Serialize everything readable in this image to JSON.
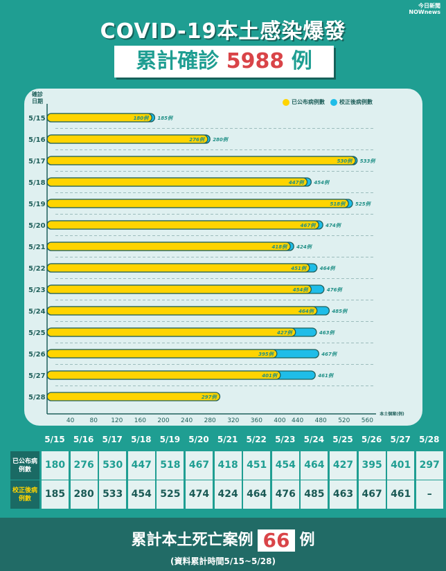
{
  "logo": {
    "line1": "今日新聞",
    "line2": "NOWnews"
  },
  "header": {
    "title": "COVID-19本土感染爆發",
    "subtitle_prefix": "累計確診",
    "subtitle_number": "5988",
    "subtitle_suffix": "例"
  },
  "colors": {
    "published": "#ffd400",
    "corrected": "#1fbde8",
    "outline": "#1f5f5a",
    "accent": "#d94448"
  },
  "chart_data": {
    "type": "bar",
    "orientation": "horizontal",
    "ylabel": "確診日期",
    "xlabel": "本土個案(例)",
    "xlim": [
      0,
      580
    ],
    "xticks": [
      40,
      80,
      120,
      160,
      200,
      240,
      280,
      320,
      360,
      400,
      440,
      480,
      520,
      560
    ],
    "legend_position": "top-right",
    "categories": [
      "5/15",
      "5/16",
      "5/17",
      "5/18",
      "5/19",
      "5/20",
      "5/21",
      "5/22",
      "5/23",
      "5/24",
      "5/25",
      "5/26",
      "5/27",
      "5/28"
    ],
    "series": [
      {
        "name": "已公布病例數",
        "values": [
          180,
          276,
          530,
          447,
          518,
          467,
          418,
          451,
          454,
          464,
          427,
          395,
          401,
          297
        ]
      },
      {
        "name": "校正後病例數",
        "values": [
          185,
          280,
          533,
          454,
          525,
          474,
          424,
          464,
          476,
          485,
          463,
          467,
          461,
          null
        ]
      }
    ],
    "unit_suffix": "例"
  },
  "table": {
    "row_labels": [
      "已公布病例數",
      "校正後病例數"
    ],
    "dates": [
      "5/15",
      "5/16",
      "5/17",
      "5/18",
      "5/19",
      "5/20",
      "5/21",
      "5/22",
      "5/23",
      "5/24",
      "5/25",
      "5/26",
      "5/27",
      "5/28"
    ],
    "published": [
      "180",
      "276",
      "530",
      "447",
      "518",
      "467",
      "418",
      "451",
      "454",
      "464",
      "427",
      "395",
      "401",
      "297"
    ],
    "corrected": [
      "185",
      "280",
      "533",
      "454",
      "525",
      "474",
      "424",
      "464",
      "476",
      "485",
      "463",
      "467",
      "461",
      "–"
    ]
  },
  "footer": {
    "death_prefix": "累計本土死亡案例",
    "death_number": "66",
    "death_suffix": "例",
    "period": "(資料累計時間5/15~5/28)"
  }
}
